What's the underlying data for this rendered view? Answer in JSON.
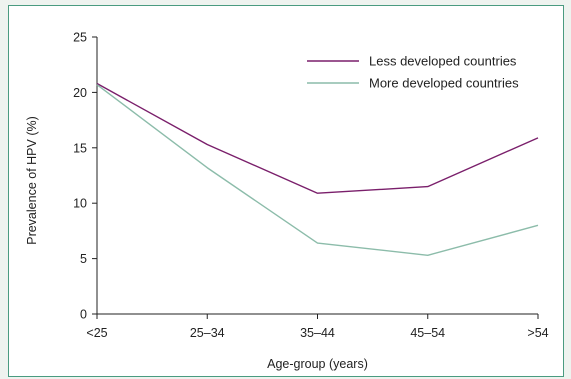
{
  "chart_data": {
    "type": "line",
    "title": "",
    "xlabel": "Age-group (years)",
    "ylabel": "Prevalence of HPV (%)",
    "categories": [
      "<25",
      "25–34",
      "35–44",
      "45–54",
      ">54"
    ],
    "ylim": [
      0,
      25
    ],
    "yticks": [
      0,
      5,
      10,
      15,
      20,
      25
    ],
    "grid": false,
    "legend_position": "top-right",
    "series": [
      {
        "name": "Less developed countries",
        "color": "#7a1f6b",
        "values": [
          20.8,
          15.3,
          10.9,
          11.5,
          15.9
        ]
      },
      {
        "name": "More developed countries",
        "color": "#8cbcaa",
        "values": [
          20.7,
          13.2,
          6.4,
          5.3,
          8.0
        ]
      }
    ]
  }
}
